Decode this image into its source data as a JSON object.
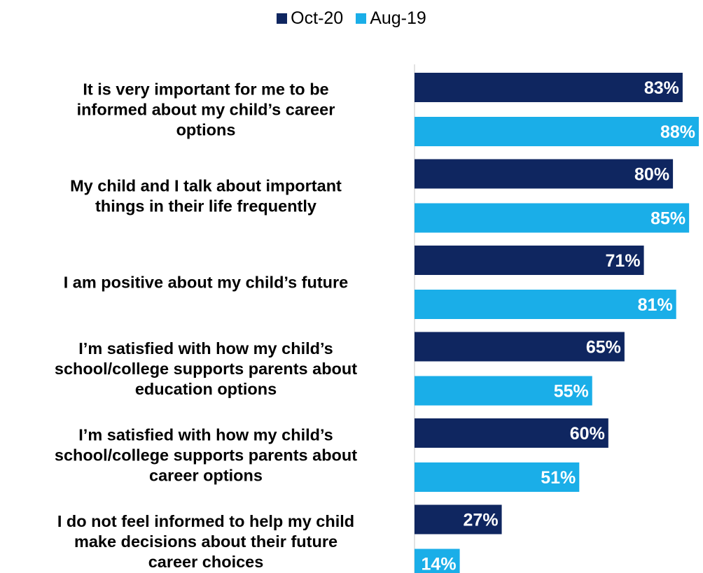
{
  "chart_data": {
    "type": "bar",
    "orientation": "horizontal",
    "categories": [
      [
        "It is very important for me to be",
        "informed about my child’s career",
        "options"
      ],
      [
        "My child and I talk about important",
        "things in their life frequently"
      ],
      [
        "I am positive about my child’s future"
      ],
      [
        "I’m satisfied with how my child’s",
        "school/college supports parents about",
        "education options"
      ],
      [
        "I’m satisfied with how my child’s",
        "school/college supports parents about",
        "career options"
      ],
      [
        "I do not feel informed to help my child",
        "make decisions about their future",
        "career choices"
      ]
    ],
    "series": [
      {
        "name": "Oct-20",
        "color": "#0f2660",
        "values": [
          83,
          80,
          71,
          65,
          60,
          27
        ],
        "labels": [
          "83%",
          "80%",
          "71%",
          "65%",
          "60%",
          "27%"
        ]
      },
      {
        "name": "Aug-19",
        "color": "#1aaee8",
        "values": [
          88,
          85,
          81,
          55,
          51,
          14
        ],
        "labels": [
          "88%",
          "85%",
          "81%",
          "55%",
          "51%",
          "14%"
        ]
      }
    ],
    "xlim": [
      0,
      88
    ],
    "legend_position": "top-center",
    "grid": false
  }
}
